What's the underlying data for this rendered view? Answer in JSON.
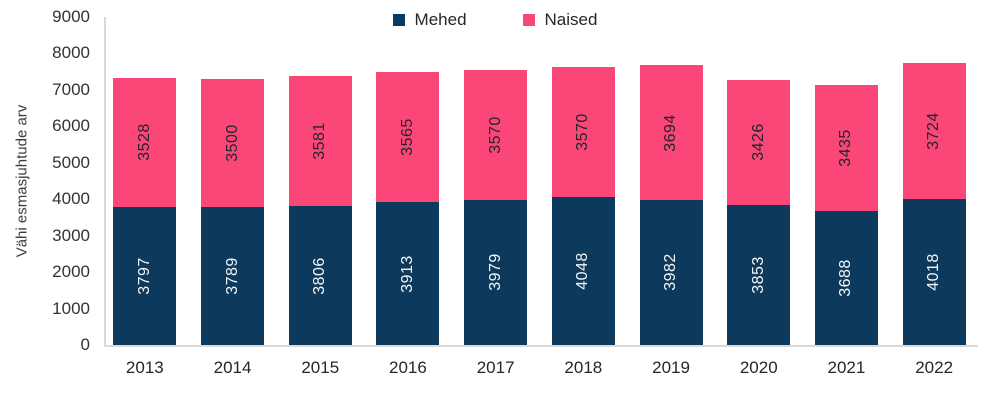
{
  "chart_data": {
    "type": "bar",
    "stacked": true,
    "title": "",
    "categories": [
      "2013",
      "2014",
      "2015",
      "2016",
      "2017",
      "2018",
      "2019",
      "2020",
      "2021",
      "2022"
    ],
    "series": [
      {
        "name": "Mehed",
        "color": "#0d3a5c",
        "label_color": "#f4f5f7",
        "values": [
          3797,
          3789,
          3806,
          3913,
          3979,
          4048,
          3982,
          3853,
          3688,
          4018
        ]
      },
      {
        "name": "Naised",
        "color": "#fb4777",
        "label_color": "#23242e",
        "values": [
          3528,
          3500,
          3581,
          3565,
          3570,
          3570,
          3694,
          3426,
          3435,
          3724
        ]
      }
    ],
    "xlabel": "",
    "ylabel": "Vähi esmasjuhtude arv",
    "ylim": [
      0,
      9000
    ],
    "ytick_step": 1000,
    "ytick_labels": [
      "0",
      "1000",
      "2000",
      "3000",
      "4000",
      "5000",
      "6000",
      "7000",
      "8000",
      "9000"
    ],
    "legend_position": "top-center",
    "grid": false,
    "axis_color": "#d9d9d9",
    "tick_label_color": "#333333",
    "category_label_color": "#262626",
    "background_color": "#ffffff"
  }
}
